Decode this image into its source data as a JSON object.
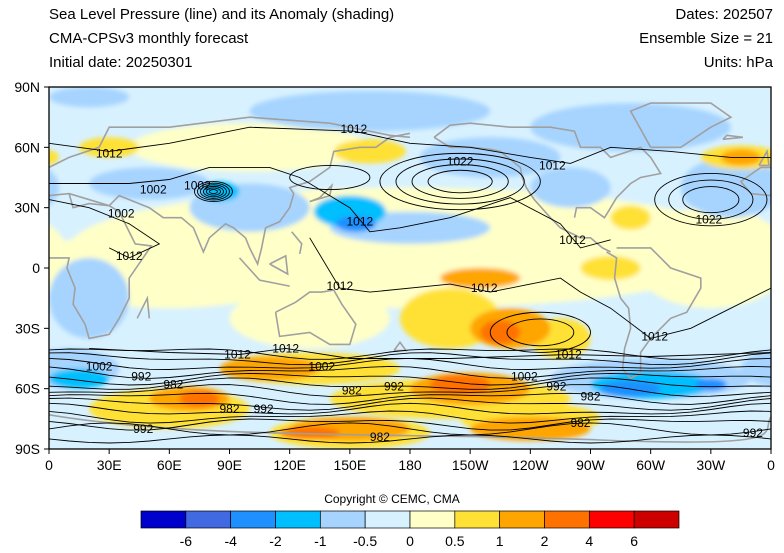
{
  "header": {
    "title": "Sea Level Pressure (line) and its Anomaly (shading)",
    "model": "CMA-CPSv3 monthly forecast",
    "initial_date": "Initial date: 20250301",
    "dates": "Dates: 202507",
    "ensemble": "Ensemble Size = 21",
    "units": "Units: hPa"
  },
  "map": {
    "lat_labels": [
      "90N",
      "60N",
      "30N",
      "0",
      "30S",
      "60S",
      "90S"
    ],
    "lon_labels": [
      "0",
      "30E",
      "60E",
      "90E",
      "120E",
      "150E",
      "180",
      "150W",
      "120W",
      "90W",
      "60W",
      "30W",
      "0"
    ],
    "contour_labels": [
      {
        "text": "1012",
        "lon": 30,
        "lat": 57
      },
      {
        "text": "1012",
        "lon": 152,
        "lat": 69
      },
      {
        "text": "1022",
        "lon": 205,
        "lat": 53
      },
      {
        "text": "1012",
        "lon": 251,
        "lat": 51
      },
      {
        "text": "1002",
        "lon": 52,
        "lat": 39
      },
      {
        "text": "1002",
        "lon": 74,
        "lat": 41
      },
      {
        "text": "1002",
        "lon": 36,
        "lat": 27
      },
      {
        "text": "1012",
        "lon": 155,
        "lat": 23
      },
      {
        "text": "1012",
        "lon": 261,
        "lat": 14
      },
      {
        "text": "1022",
        "lon": 329,
        "lat": 24
      },
      {
        "text": "1012",
        "lon": 40,
        "lat": 6
      },
      {
        "text": "1012",
        "lon": 145,
        "lat": -9
      },
      {
        "text": "1012",
        "lon": 217,
        "lat": -10
      },
      {
        "text": "1012",
        "lon": 302,
        "lat": -34
      },
      {
        "text": "1012",
        "lon": 94,
        "lat": -43
      },
      {
        "text": "1012",
        "lon": 118,
        "lat": -40
      },
      {
        "text": "1012",
        "lon": 259,
        "lat": -43
      },
      {
        "text": "1002",
        "lon": 25,
        "lat": -49
      },
      {
        "text": "1002",
        "lon": 136,
        "lat": -49
      },
      {
        "text": "1002",
        "lon": 237,
        "lat": -54
      },
      {
        "text": "992",
        "lon": 46,
        "lat": -54
      },
      {
        "text": "982",
        "lon": 62,
        "lat": -58
      },
      {
        "text": "982",
        "lon": 151,
        "lat": -61
      },
      {
        "text": "992",
        "lon": 172,
        "lat": -59
      },
      {
        "text": "992",
        "lon": 253,
        "lat": -59
      },
      {
        "text": "982",
        "lon": 270,
        "lat": -64
      },
      {
        "text": "982",
        "lon": 90,
        "lat": -70
      },
      {
        "text": "992",
        "lon": 107,
        "lat": -70
      },
      {
        "text": "992",
        "lon": 47,
        "lat": -80
      },
      {
        "text": "982",
        "lon": 165,
        "lat": -84
      },
      {
        "text": "982",
        "lon": 265,
        "lat": -77
      },
      {
        "text": "992",
        "lon": 351,
        "lat": -82
      }
    ],
    "shading_colors": {
      "neg_strong": "#1e90ff",
      "neg_mid": "#00bfff",
      "neg_weak": "#a6d4ff",
      "neg_slight": "#d8f1ff",
      "pos_slight": "#ffffc8",
      "pos_weak": "#ffe135",
      "pos_mid": "#ffa500",
      "pos_strong": "#ff7200",
      "coast": "#a0a0a0",
      "contour": "#000000"
    }
  },
  "colorbar": {
    "colors": [
      "#0000cd",
      "#4169e1",
      "#1e90ff",
      "#00bfff",
      "#a6d4ff",
      "#d8f1ff",
      "#ffffc8",
      "#ffe135",
      "#ffa500",
      "#ff7200",
      "#ff0000",
      "#cd0000"
    ],
    "labels": [
      "-6",
      "-4",
      "-2",
      "-1",
      "-0.5",
      "0",
      "0.5",
      "1",
      "2",
      "4",
      "6"
    ]
  },
  "copyright": "Copyright © CEMC, CMA"
}
